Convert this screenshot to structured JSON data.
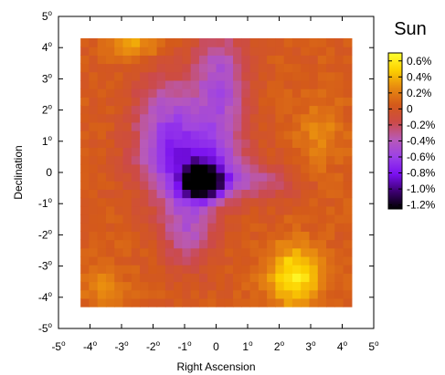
{
  "chart_data": {
    "type": "heatmap",
    "title": "Sun",
    "xlabel": "Right Ascension",
    "ylabel": "Declination",
    "xlim": [
      -5,
      5
    ],
    "ylim": [
      -5,
      5
    ],
    "data_extent": [
      -4.3,
      4.3
    ],
    "x_ticks": [
      -5,
      -4,
      -3,
      -2,
      -1,
      0,
      1,
      2,
      3,
      4,
      5
    ],
    "y_ticks": [
      -5,
      -4,
      -3,
      -2,
      -1,
      0,
      1,
      2,
      3,
      4,
      5
    ],
    "degree_symbol": "o",
    "colorbar": {
      "labels": [
        "0.6%",
        "0.4%",
        "0.2%",
        "0",
        "-0.2%",
        "-0.4%",
        "-0.6%",
        "-0.8%",
        "-1.0%",
        "-1.2%"
      ],
      "values": [
        0.6,
        0.4,
        0.2,
        0,
        -0.2,
        -0.4,
        -0.6,
        -0.8,
        -1.0,
        -1.2
      ],
      "range": [
        -1.25,
        0.7
      ],
      "colors": [
        "#000000",
        "#3c0070",
        "#7a10f0",
        "#9c40e8",
        "#b85ab8",
        "#cc4a48",
        "#d45a1a",
        "#e88a10",
        "#fcd000",
        "#ffff30"
      ]
    },
    "field": {
      "background": 0.05,
      "features": [
        {
          "kind": "deficit",
          "center": [
            -0.4,
            -0.3
          ],
          "amplitude": -1.25,
          "sigma": [
            0.45,
            0.35
          ]
        },
        {
          "kind": "deficit",
          "center": [
            -0.8,
            0.3
          ],
          "amplitude": -0.75,
          "sigma": [
            1.1,
            0.9
          ]
        },
        {
          "kind": "deficit",
          "center": [
            0.1,
            2.8
          ],
          "amplitude": -0.55,
          "sigma": [
            0.6,
            1.3
          ]
        },
        {
          "kind": "deficit",
          "center": [
            -1.6,
            1.9
          ],
          "amplitude": -0.45,
          "sigma": [
            0.7,
            1.0
          ]
        },
        {
          "kind": "deficit",
          "center": [
            -0.9,
            -1.8
          ],
          "amplitude": -0.45,
          "sigma": [
            0.6,
            0.9
          ]
        },
        {
          "kind": "deficit",
          "center": [
            1.4,
            -0.3
          ],
          "amplitude": -0.3,
          "sigma": [
            0.9,
            0.4
          ]
        },
        {
          "kind": "excess",
          "center": [
            2.5,
            -3.3
          ],
          "amplitude": 0.55,
          "sigma": [
            0.6,
            0.7
          ]
        },
        {
          "kind": "excess",
          "center": [
            -2.6,
            4.1
          ],
          "amplitude": 0.3,
          "sigma": [
            0.6,
            0.3
          ]
        },
        {
          "kind": "excess",
          "center": [
            3.3,
            1.2
          ],
          "amplitude": 0.2,
          "sigma": [
            0.5,
            0.8
          ]
        },
        {
          "kind": "excess",
          "center": [
            -3.6,
            -3.6
          ],
          "amplitude": 0.2,
          "sigma": [
            0.5,
            0.5
          ]
        }
      ]
    }
  }
}
